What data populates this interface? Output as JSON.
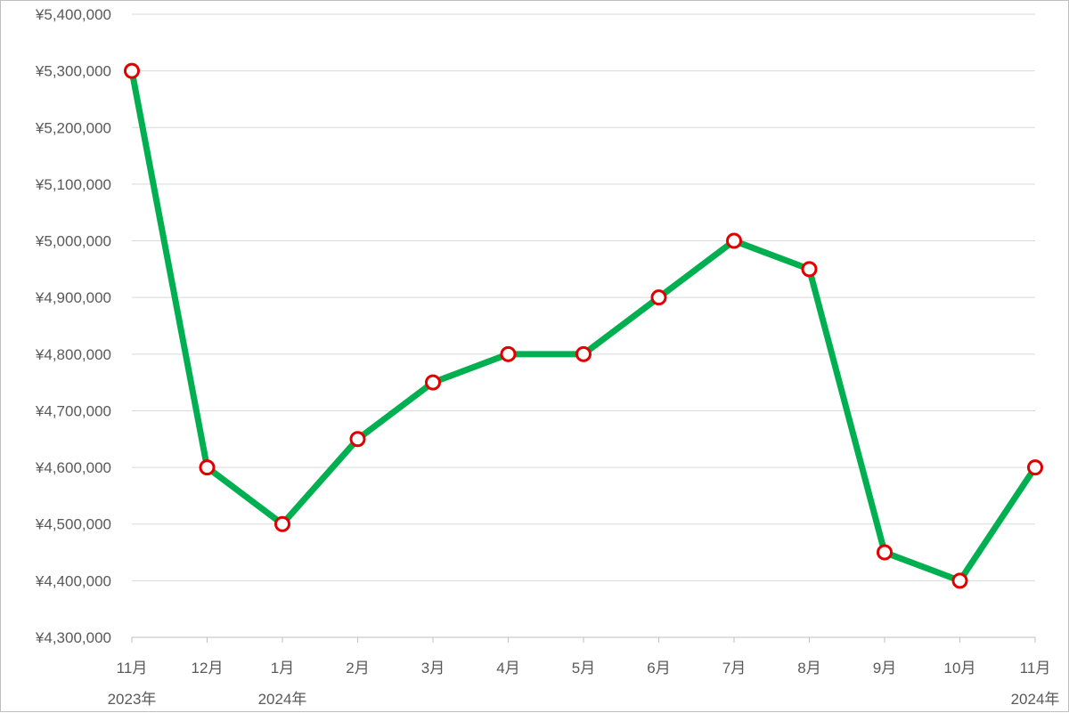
{
  "chart_data": {
    "type": "line",
    "title": "",
    "xlabel": "",
    "ylabel": "",
    "ylim": [
      4300000,
      5400000
    ],
    "ytick_step": 100000,
    "y_tick_labels": [
      "¥4,300,000",
      "¥4,400,000",
      "¥4,500,000",
      "¥4,600,000",
      "¥4,700,000",
      "¥4,800,000",
      "¥4,900,000",
      "¥5,000,000",
      "¥5,100,000",
      "¥5,200,000",
      "¥5,300,000",
      "¥5,400,000"
    ],
    "categories": [
      "11月",
      "12月",
      "1月",
      "2月",
      "3月",
      "4月",
      "5月",
      "6月",
      "7月",
      "8月",
      "9月",
      "10月",
      "11月"
    ],
    "year_labels": [
      {
        "index": 0,
        "text": "2023年"
      },
      {
        "index": 2,
        "text": "2024年"
      },
      {
        "index": 12,
        "text": "2024年"
      }
    ],
    "series": [
      {
        "values": [
          5300000,
          4600000,
          4500000,
          4650000,
          4750000,
          4800000,
          4800000,
          4900000,
          5000000,
          4950000,
          4450000,
          4400000,
          4600000
        ]
      }
    ],
    "grid": true,
    "legend": "none",
    "colors": {
      "line": "#00b050",
      "marker_stroke": "#e00000",
      "marker_fill": "#ffffff",
      "grid": "#d9d9d9",
      "axis": "#bfbfbf"
    }
  }
}
